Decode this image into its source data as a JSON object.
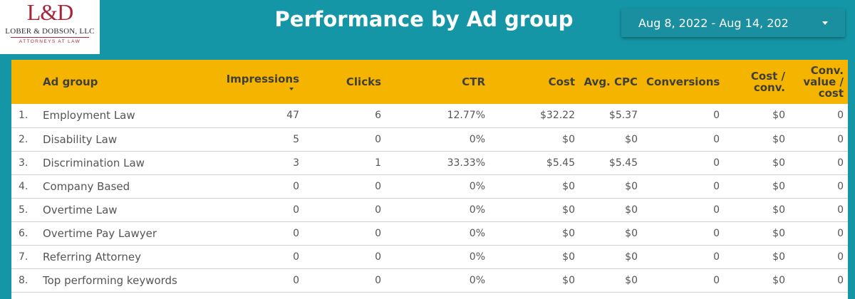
{
  "logo": {
    "mark": "L&D",
    "firm": "LOBER & DOBSON, LLC",
    "sub": "ATTORNEYS AT LAW"
  },
  "header": {
    "title": "Performance by Ad group",
    "date_range": "Aug 8, 2022 - Aug 14, 202",
    "dropdown_icon": "chevron-down-icon"
  },
  "colors": {
    "header_bg": "#1496a6",
    "table_header_bg": "#f4b400"
  },
  "table": {
    "columns": [
      "Ad group",
      "Impressions",
      "Clicks",
      "CTR",
      "Cost",
      "Avg. CPC",
      "Conversions",
      "Cost / conv.",
      "Conv. value / cost"
    ],
    "sort_column": "Impressions",
    "rows": [
      {
        "idx": "1.",
        "name": "Employment Law",
        "impressions": "47",
        "clicks": "6",
        "ctr": "12.77%",
        "cost": "$32.22",
        "avg_cpc": "$5.37",
        "conversions": "0",
        "cost_conv": "$0",
        "conv_value_cost": "0"
      },
      {
        "idx": "2.",
        "name": "Disability Law",
        "impressions": "5",
        "clicks": "0",
        "ctr": "0%",
        "cost": "$0",
        "avg_cpc": "$0",
        "conversions": "0",
        "cost_conv": "$0",
        "conv_value_cost": "0"
      },
      {
        "idx": "3.",
        "name": "Discrimination Law",
        "impressions": "3",
        "clicks": "1",
        "ctr": "33.33%",
        "cost": "$5.45",
        "avg_cpc": "$5.45",
        "conversions": "0",
        "cost_conv": "$0",
        "conv_value_cost": "0"
      },
      {
        "idx": "4.",
        "name": "Company Based",
        "impressions": "0",
        "clicks": "0",
        "ctr": "0%",
        "cost": "$0",
        "avg_cpc": "$0",
        "conversions": "0",
        "cost_conv": "$0",
        "conv_value_cost": "0"
      },
      {
        "idx": "5.",
        "name": "Overtime Law",
        "impressions": "0",
        "clicks": "0",
        "ctr": "0%",
        "cost": "$0",
        "avg_cpc": "$0",
        "conversions": "0",
        "cost_conv": "$0",
        "conv_value_cost": "0"
      },
      {
        "idx": "6.",
        "name": "Overtime Pay Lawyer",
        "impressions": "0",
        "clicks": "0",
        "ctr": "0%",
        "cost": "$0",
        "avg_cpc": "$0",
        "conversions": "0",
        "cost_conv": "$0",
        "conv_value_cost": "0"
      },
      {
        "idx": "7.",
        "name": "Referring Attorney",
        "impressions": "0",
        "clicks": "0",
        "ctr": "0%",
        "cost": "$0",
        "avg_cpc": "$0",
        "conversions": "0",
        "cost_conv": "$0",
        "conv_value_cost": "0"
      },
      {
        "idx": "8.",
        "name": "Top performing keywords",
        "impressions": "0",
        "clicks": "0",
        "ctr": "0%",
        "cost": "$0",
        "avg_cpc": "$0",
        "conversions": "0",
        "cost_conv": "$0",
        "conv_value_cost": "0"
      }
    ]
  }
}
